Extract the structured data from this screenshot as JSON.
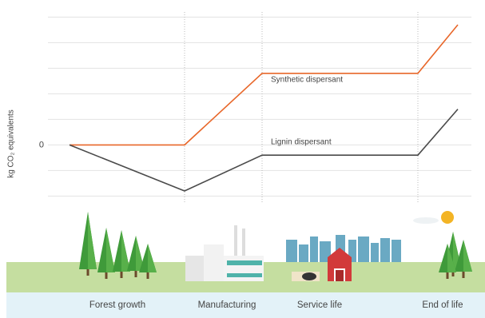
{
  "chart_data": {
    "type": "line",
    "y_label": "kg CO₂ equivalents",
    "yticks": [
      0
    ],
    "ygrid": [
      -2,
      -1,
      0,
      1,
      2,
      3,
      4,
      5
    ],
    "ylim": [
      -2.3,
      5.2
    ],
    "stages": [
      "Forest growth",
      "Manufacturing",
      "Service life",
      "End of life"
    ],
    "series": [
      {
        "name": "Synthetic dispersant",
        "color": "#e8672a",
        "values": [
          0,
          0,
          2.8,
          2.8,
          4.7
        ]
      },
      {
        "name": "Lignin dispersant",
        "color": "#4a4a4a",
        "values": [
          0,
          -1.8,
          -0.4,
          -0.4,
          1.4
        ]
      }
    ]
  }
}
